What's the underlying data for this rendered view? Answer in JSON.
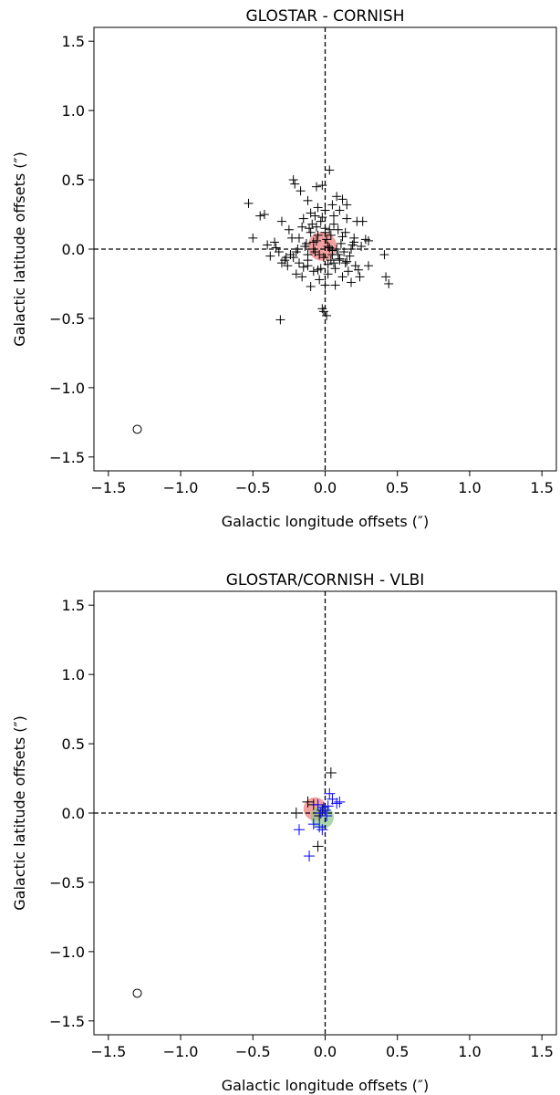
{
  "chart_data": [
    {
      "type": "scatter",
      "title": "GLOSTAR - CORNISH",
      "xlabel": "Galactic longitude offsets (″)",
      "ylabel": "Galactic latitude offsets (″)",
      "xlim": [
        -1.6,
        1.6
      ],
      "ylim": [
        -1.6,
        1.6
      ],
      "xticks": [
        -1.5,
        -1.0,
        -0.5,
        0.0,
        0.5,
        1.0,
        1.5
      ],
      "yticks": [
        -1.5,
        -1.0,
        -0.5,
        0.0,
        0.5,
        1.0,
        1.5
      ],
      "xtick_labels": [
        "−1.5",
        "−1.0",
        "−0.5",
        "0.0",
        "0.5",
        "1.0",
        "1.5"
      ],
      "ytick_labels": [
        "−1.5",
        "−1.0",
        "−0.5",
        "0.0",
        "0.5",
        "1.0",
        "1.5"
      ],
      "grid": false,
      "reference_lines": {
        "x": 0.0,
        "y": 0.0,
        "style": "dashed",
        "color": "#000000"
      },
      "beam_marker": {
        "x": -1.3,
        "y": -1.3,
        "shape": "open-circle"
      },
      "mean_offset_circles": [
        {
          "x": -0.02,
          "y": 0.02,
          "radius": 0.1,
          "color": "#f08080"
        }
      ],
      "series": [
        {
          "marker": "plus",
          "color": "#000000",
          "x": [
            0.03,
            -0.22,
            -0.53,
            -0.5,
            -0.45,
            -0.42,
            -0.3,
            -0.21,
            -0.17,
            -0.12,
            -0.06,
            -0.02,
            0.0,
            0.08,
            0.12,
            0.15,
            0.22,
            0.26,
            0.3,
            0.28,
            0.2,
            0.15,
            0.1,
            0.05,
            -0.05,
            -0.1,
            -0.15,
            -0.25,
            -0.35,
            -0.4,
            -0.38,
            -0.32,
            -0.28,
            -0.22,
            -0.18,
            -0.12,
            -0.08,
            -0.03,
            0.02,
            0.06,
            0.1,
            0.16,
            0.21,
            0.24,
            0.18,
            0.12,
            0.07,
            0.0,
            -0.04,
            -0.1,
            -0.16,
            -0.2,
            -0.26,
            -0.3,
            -0.18,
            -0.1,
            -0.05,
            0.04,
            0.09,
            0.14,
            0.2,
            0.25,
            0.3,
            0.41,
            0.42,
            0.44,
            -0.31,
            -0.02,
            -0.01,
            0.01,
            -0.08,
            -0.13,
            -0.06,
            0.02,
            0.08,
            0.13,
            0.11,
            0.05,
            -0.01,
            -0.07,
            -0.14,
            -0.19,
            -0.24,
            -0.12,
            -0.04,
            0.03,
            0.06,
            -0.09,
            -0.03,
            0.0,
            0.04,
            -0.06,
            0.01,
            0.09,
            -0.11,
            0.15,
            -0.16,
            0.19,
            -0.2,
            0.06,
            -0.02,
            0.17,
            -0.07,
            0.23,
            -0.27,
            0.02,
            -0.34,
            0.12,
            -0.15,
            0.07,
            0.14,
            -0.05,
            0.0,
            0.18,
            -0.23,
            0.1,
            -0.12,
            0.03,
            -0.08,
            0.05
          ],
          "y": [
            0.57,
            0.5,
            0.33,
            0.08,
            0.24,
            0.25,
            0.2,
            0.47,
            0.42,
            0.35,
            0.45,
            0.46,
            0.28,
            0.38,
            0.36,
            0.32,
            0.2,
            0.2,
            0.06,
            0.07,
            0.05,
            0.22,
            0.28,
            0.32,
            0.3,
            0.26,
            0.22,
            0.14,
            0.05,
            0.03,
            -0.05,
            -0.02,
            -0.08,
            -0.06,
            -0.1,
            -0.12,
            -0.16,
            -0.14,
            -0.18,
            -0.1,
            -0.08,
            -0.16,
            -0.12,
            -0.2,
            -0.24,
            -0.2,
            -0.26,
            -0.26,
            -0.22,
            -0.27,
            -0.2,
            -0.18,
            -0.12,
            -0.1,
            0.08,
            0.12,
            0.1,
            0.1,
            0.14,
            0.12,
            0.08,
            0.02,
            -0.12,
            -0.04,
            -0.2,
            -0.25,
            -0.51,
            -0.43,
            -0.45,
            -0.48,
            0.0,
            0.04,
            0.06,
            0.02,
            0.0,
            -0.02,
            0.04,
            -0.04,
            -0.06,
            -0.02,
            0.02,
            0.0,
            -0.04,
            -0.08,
            -0.04,
            0.14,
            0.18,
            0.18,
            0.2,
            0.12,
            -0.08,
            0.16,
            0.07,
            -0.04,
            0.15,
            -0.09,
            0.16,
            0.03,
            -0.02,
            0.24,
            0.23,
            -0.05,
            0.24,
            -0.15,
            -0.06,
            -0.11,
            0.01,
            0.09,
            -0.13,
            -0.14,
            -0.1,
            -0.15,
            0.15,
            0.0,
            0.08,
            -0.07,
            -0.04,
            0.01,
            0.05,
            -0.01
          ]
        }
      ]
    },
    {
      "type": "scatter",
      "title": "GLOSTAR/CORNISH - VLBI",
      "xlabel": "Galactic longitude offsets (″)",
      "ylabel": "Galactic latitude offsets (″)",
      "xlim": [
        -1.6,
        1.6
      ],
      "ylim": [
        -1.6,
        1.6
      ],
      "xticks": [
        -1.5,
        -1.0,
        -0.5,
        0.0,
        0.5,
        1.0,
        1.5
      ],
      "yticks": [
        -1.5,
        -1.0,
        -0.5,
        0.0,
        0.5,
        1.0,
        1.5
      ],
      "xtick_labels": [
        "−1.5",
        "−1.0",
        "−0.5",
        "0.0",
        "0.5",
        "1.0",
        "1.5"
      ],
      "ytick_labels": [
        "−1.5",
        "−1.0",
        "−0.5",
        "0.0",
        "0.5",
        "1.0",
        "1.5"
      ],
      "grid": false,
      "reference_lines": {
        "x": 0.0,
        "y": 0.0,
        "style": "dashed",
        "color": "#000000"
      },
      "beam_marker": {
        "x": -1.3,
        "y": -1.3,
        "shape": "open-circle"
      },
      "mean_offset_circles": [
        {
          "x": -0.07,
          "y": 0.03,
          "radius": 0.08,
          "color": "#f08080"
        },
        {
          "x": -0.02,
          "y": -0.03,
          "radius": 0.08,
          "color": "#90c890"
        }
      ],
      "series": [
        {
          "marker": "plus",
          "color": "#000000",
          "x": [
            0.04,
            -0.05,
            -0.2,
            -0.12,
            -0.08,
            -0.04,
            -0.02
          ],
          "y": [
            0.29,
            -0.24,
            0.0,
            0.08,
            0.06,
            -0.02,
            0.02
          ]
        },
        {
          "marker": "plus",
          "color": "#0000ff",
          "x": [
            -0.18,
            -0.11,
            -0.08,
            -0.04,
            -0.02,
            0.0,
            0.02,
            0.03,
            0.05,
            0.08,
            0.1,
            -0.01,
            -0.05,
            0.01,
            -0.03
          ],
          "y": [
            -0.12,
            -0.31,
            -0.08,
            -0.1,
            -0.12,
            0.02,
            0.05,
            0.14,
            0.1,
            0.07,
            0.08,
            0.04,
            0.06,
            -0.02,
            0.0
          ]
        }
      ]
    }
  ]
}
